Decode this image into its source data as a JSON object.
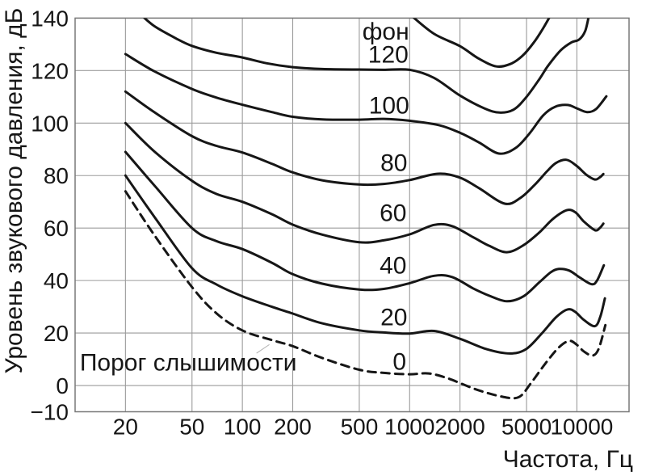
{
  "figure": {
    "background": "#ffffff"
  },
  "colors": {
    "curve": "#161616",
    "grid": "#9b9b9b",
    "frame": "#787878",
    "text": "#161616",
    "leader": "#b0b0b0",
    "background": "#ffffff"
  },
  "chart_data": {
    "type": "line",
    "title": "",
    "xlabel": "Частота, Гц",
    "ylabel": "Уровень звукового давления, дБ",
    "x_scale": "log",
    "xlim": [
      10,
      20500
    ],
    "ylim": [
      -10,
      140
    ],
    "grid": true,
    "legend": "none (curves labeled inline)",
    "x_ticks": [
      {
        "value": 20,
        "label": "20"
      },
      {
        "value": 50,
        "label": "50"
      },
      {
        "value": 100,
        "label": "100"
      },
      {
        "value": 200,
        "label": "200"
      },
      {
        "value": 500,
        "label": "500"
      },
      {
        "value": 1000,
        "label": "1000"
      },
      {
        "value": 2000,
        "label": "2000"
      },
      {
        "value": 5000,
        "label": "5000"
      },
      {
        "value": 10000,
        "label": "10000"
      }
    ],
    "y_ticks": [
      {
        "value": -10,
        "label": "−10"
      },
      {
        "value": 0,
        "label": "0"
      },
      {
        "value": 20,
        "label": "20"
      },
      {
        "value": 40,
        "label": "40"
      },
      {
        "value": 60,
        "label": "60"
      },
      {
        "value": 80,
        "label": "80"
      },
      {
        "value": 100,
        "label": "100"
      },
      {
        "value": 120,
        "label": "120"
      },
      {
        "value": 140,
        "label": "140"
      }
    ],
    "annotations": {
      "phon_unit": {
        "text": "фон",
        "f": 720,
        "db": 134.7
      },
      "threshold": {
        "text": "Порог слышимости",
        "f": 47.5,
        "db": 8.7
      },
      "leader_line": {
        "f1": 121.5,
        "db1": 12.3,
        "f2": 145,
        "db2": 15.6
      }
    },
    "series": [
      {
        "name": "phon-140-unlabeled",
        "label": "",
        "style": "solid",
        "points": [
          [
            1030,
            140.8
          ],
          [
            1400,
            134
          ],
          [
            2000,
            129.3
          ],
          [
            2600,
            124.5
          ],
          [
            3300,
            121.6
          ],
          [
            4000,
            122.5
          ],
          [
            4700,
            125.5
          ],
          [
            5500,
            130.5
          ],
          [
            6200,
            135.5
          ],
          [
            6950,
            141
          ]
        ]
      },
      {
        "name": "phon-120",
        "label": "120",
        "label_f": 745,
        "label_db": 125.9,
        "style": "solid",
        "points": [
          [
            25,
            141
          ],
          [
            30,
            136.8
          ],
          [
            40,
            132.3
          ],
          [
            50,
            129.4
          ],
          [
            70,
            126.8
          ],
          [
            100,
            125
          ],
          [
            140,
            122.8
          ],
          [
            200,
            121.3
          ],
          [
            300,
            120.6
          ],
          [
            500,
            120.4
          ],
          [
            700,
            120.3
          ],
          [
            1000,
            120.3
          ],
          [
            1400,
            117.2
          ],
          [
            2000,
            110.5
          ],
          [
            2800,
            105.6
          ],
          [
            3450,
            104
          ],
          [
            4200,
            105.2
          ],
          [
            5000,
            110
          ],
          [
            6000,
            117
          ],
          [
            6700,
            121.7
          ],
          [
            8000,
            127.7
          ],
          [
            9300,
            130.8
          ],
          [
            10300,
            131.8
          ],
          [
            11200,
            135
          ],
          [
            11800,
            141
          ]
        ]
      },
      {
        "name": "phon-100",
        "label": "100",
        "label_f": 753,
        "label_db": 106.6,
        "style": "solid",
        "points": [
          [
            20,
            126.3
          ],
          [
            30,
            119.6
          ],
          [
            50,
            113
          ],
          [
            70,
            109.7
          ],
          [
            100,
            107
          ],
          [
            150,
            104.2
          ],
          [
            200,
            102.4
          ],
          [
            300,
            101.4
          ],
          [
            500,
            101.3
          ],
          [
            700,
            101.6
          ],
          [
            1000,
            100.9
          ],
          [
            1500,
            99.2
          ],
          [
            2000,
            96.3
          ],
          [
            2600,
            92.6
          ],
          [
            3420,
            88.4
          ],
          [
            4300,
            90.5
          ],
          [
            5200,
            96
          ],
          [
            6300,
            103
          ],
          [
            7400,
            106.2
          ],
          [
            8800,
            106.9
          ],
          [
            10000,
            105.6
          ],
          [
            11500,
            104.2
          ],
          [
            13000,
            105.3
          ],
          [
            15000,
            110.2
          ]
        ]
      },
      {
        "name": "phon-80",
        "label": "80",
        "label_f": 805,
        "label_db": 84.7,
        "style": "solid",
        "points": [
          [
            20,
            112
          ],
          [
            30,
            104
          ],
          [
            50,
            95
          ],
          [
            70,
            91.3
          ],
          [
            100,
            88.8
          ],
          [
            150,
            84.5
          ],
          [
            200,
            81.2
          ],
          [
            300,
            78.2
          ],
          [
            500,
            76.6
          ],
          [
            700,
            76.8
          ],
          [
            1000,
            78.3
          ],
          [
            1480,
            80.7
          ],
          [
            2000,
            79.2
          ],
          [
            2600,
            75.2
          ],
          [
            3700,
            69.3
          ],
          [
            4600,
            71.5
          ],
          [
            5600,
            76.5
          ],
          [
            6600,
            81.5
          ],
          [
            7500,
            84.8
          ],
          [
            8700,
            86
          ],
          [
            10000,
            83.6
          ],
          [
            11400,
            80.3
          ],
          [
            12800,
            78.5
          ],
          [
            13700,
            79.3
          ],
          [
            14400,
            80.6
          ]
        ]
      },
      {
        "name": "phon-60",
        "label": "60",
        "label_f": 796,
        "label_db": 65.6,
        "style": "solid",
        "points": [
          [
            20,
            100
          ],
          [
            30,
            89
          ],
          [
            50,
            78
          ],
          [
            70,
            73
          ],
          [
            100,
            70
          ],
          [
            150,
            65.3
          ],
          [
            200,
            61.3
          ],
          [
            300,
            57.5
          ],
          [
            500,
            54.6
          ],
          [
            700,
            55.3
          ],
          [
            1000,
            57.6
          ],
          [
            1400,
            61.2
          ],
          [
            1800,
            60.7
          ],
          [
            2400,
            56.5
          ],
          [
            3000,
            53.2
          ],
          [
            3815,
            50.8
          ],
          [
            4800,
            53.5
          ],
          [
            6000,
            58.5
          ],
          [
            7200,
            63.5
          ],
          [
            8700,
            66.8
          ],
          [
            9800,
            66
          ],
          [
            11000,
            62.5
          ],
          [
            12800,
            59.2
          ],
          [
            13700,
            60
          ],
          [
            14400,
            61.7
          ]
        ]
      },
      {
        "name": "phon-40",
        "label": "40",
        "label_f": 796,
        "label_db": 45.6,
        "style": "solid",
        "points": [
          [
            20,
            89
          ],
          [
            30,
            76
          ],
          [
            50,
            60
          ],
          [
            70,
            55
          ],
          [
            100,
            52
          ],
          [
            150,
            46.8
          ],
          [
            200,
            42.4
          ],
          [
            300,
            38.8
          ],
          [
            500,
            36.6
          ],
          [
            700,
            36.8
          ],
          [
            1000,
            39
          ],
          [
            1400,
            41.8
          ],
          [
            1800,
            41.3
          ],
          [
            2400,
            37
          ],
          [
            3000,
            34.2
          ],
          [
            3815,
            32.1
          ],
          [
            4800,
            34
          ],
          [
            6000,
            39.5
          ],
          [
            7000,
            43.2
          ],
          [
            7800,
            44.4
          ],
          [
            9000,
            43.8
          ],
          [
            10500,
            41
          ],
          [
            12250,
            38.6
          ],
          [
            13200,
            40
          ],
          [
            14500,
            45.8
          ]
        ]
      },
      {
        "name": "phon-20",
        "label": "20",
        "label_f": 805,
        "label_db": 25.9,
        "style": "solid",
        "points": [
          [
            20,
            80
          ],
          [
            30,
            64
          ],
          [
            50,
            44.7
          ],
          [
            70,
            38.5
          ],
          [
            100,
            34
          ],
          [
            150,
            30
          ],
          [
            200,
            27.4
          ],
          [
            300,
            23.7
          ],
          [
            500,
            21
          ],
          [
            700,
            20.2
          ],
          [
            1000,
            19.8
          ],
          [
            1400,
            20.8
          ],
          [
            2000,
            17.8
          ],
          [
            2900,
            13.8
          ],
          [
            4000,
            12.2
          ],
          [
            5000,
            14
          ],
          [
            6200,
            20
          ],
          [
            7500,
            26
          ],
          [
            8800,
            29
          ],
          [
            9800,
            28
          ],
          [
            11000,
            25
          ],
          [
            12800,
            22.6
          ],
          [
            13800,
            26.2
          ],
          [
            14700,
            33.2
          ]
        ]
      },
      {
        "name": "phon-0-threshold",
        "label": "0",
        "label_f": 870,
        "label_db": 8.9,
        "style": "dashed",
        "points": [
          [
            20,
            74
          ],
          [
            30,
            57
          ],
          [
            50,
            37.5
          ],
          [
            70,
            27.5
          ],
          [
            100,
            21
          ],
          [
            150,
            17.3
          ],
          [
            200,
            15
          ],
          [
            300,
            10.5
          ],
          [
            500,
            6
          ],
          [
            700,
            4.8
          ],
          [
            1000,
            4.3
          ],
          [
            1300,
            4.6
          ],
          [
            1700,
            2.7
          ],
          [
            2500,
            -1.5
          ],
          [
            3600,
            -4.3
          ],
          [
            4500,
            -4.4
          ],
          [
            5300,
            0.8
          ],
          [
            6500,
            8.5
          ],
          [
            7800,
            14.5
          ],
          [
            9000,
            17
          ],
          [
            10000,
            15.5
          ],
          [
            11000,
            13
          ],
          [
            12400,
            11.4
          ],
          [
            13500,
            14
          ],
          [
            14800,
            23
          ]
        ]
      }
    ]
  }
}
